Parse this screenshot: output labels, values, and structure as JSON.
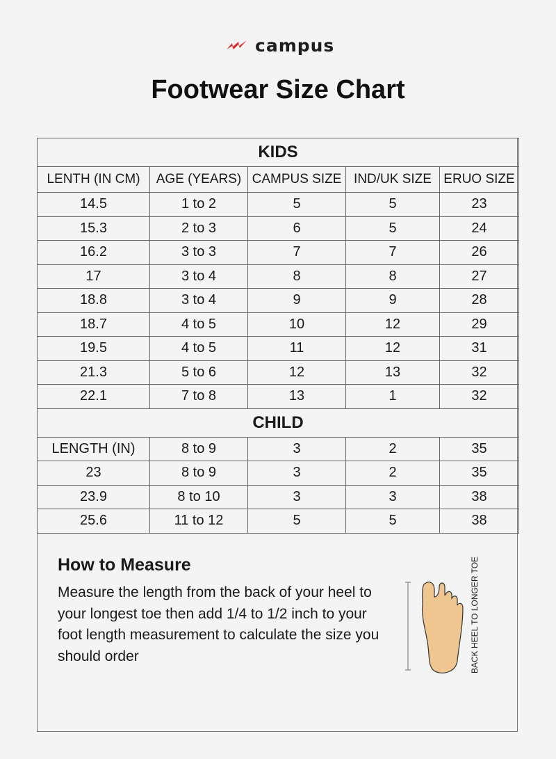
{
  "brand": {
    "name": "campus",
    "logo_color": "#d62b2b"
  },
  "title": "Footwear Size Chart",
  "kids": {
    "section": "KIDS",
    "headers": [
      "LENTH (IN CM)",
      "AGE (YEARS)",
      "CAMPUS SIZE",
      "IND/UK SIZE",
      "ERUO SIZE"
    ],
    "rows": [
      [
        "14.5",
        "1 to 2",
        "5",
        "5",
        "23"
      ],
      [
        "15.3",
        "2 to 3",
        "6",
        "5",
        "24"
      ],
      [
        "16.2",
        "3 to 3",
        "7",
        "7",
        "26"
      ],
      [
        "17",
        "3 to 4",
        "8",
        "8",
        "27"
      ],
      [
        "18.8",
        "3 to 4",
        "9",
        "9",
        "28"
      ],
      [
        "18.7",
        "4 to 5",
        "10",
        "12",
        "29"
      ],
      [
        "19.5",
        "4 to 5",
        "11",
        "12",
        "31"
      ],
      [
        "21.3",
        "5 to 6",
        "12",
        "13",
        "32"
      ],
      [
        "22.1",
        "7 to 8",
        "13",
        "1",
        "32"
      ]
    ]
  },
  "child": {
    "section": "CHILD",
    "rows": [
      [
        "LENGTH (IN)",
        "8 to 9",
        "3",
        "2",
        "35"
      ],
      [
        "23",
        "8 to 9",
        "3",
        "2",
        "35"
      ],
      [
        "23.9",
        "8 to 10",
        "3",
        "3",
        "38"
      ],
      [
        "25.6",
        "11 to 12",
        "5",
        "5",
        "38"
      ]
    ]
  },
  "measure": {
    "title": "How to Measure",
    "text": "Measure the length from the back of your heel to your longest toe then add 1/4 to 1/2 inch to your foot length measurement to calculate the size you should order",
    "diagram_label": "BACK HEEL TO LONGER TOE",
    "foot_color": "#efc690"
  }
}
